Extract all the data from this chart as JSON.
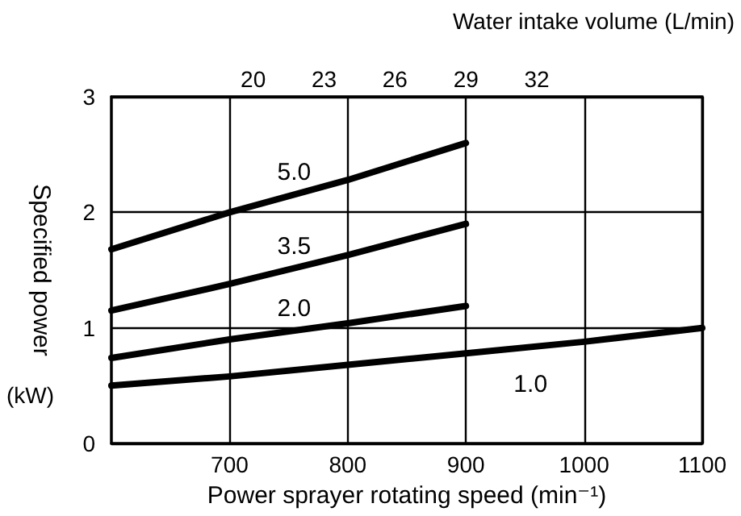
{
  "chart_data": {
    "type": "line",
    "xlabel": "Power sprayer rotating speed (min⁻¹)",
    "ylabel": "Specified power",
    "x2label": "Water intake volume (L/min)",
    "annotations": [
      "(kW)"
    ],
    "xlim": [
      600,
      1100
    ],
    "xticks": [
      700,
      800,
      900,
      1000,
      1100
    ],
    "ylim": [
      0,
      3
    ],
    "yticks": [
      0,
      1,
      2,
      3
    ],
    "x2lim": [
      14,
      39
    ],
    "x2ticks": [
      20,
      23,
      26,
      29,
      32
    ],
    "grid": true,
    "legend": false,
    "marker": "none",
    "line_style": "solid",
    "series": [
      {
        "name": "5.0",
        "color": "#000000",
        "x": [
          600,
          700,
          800,
          900
        ],
        "values": [
          1.68,
          2.0,
          2.28,
          2.6
        ]
      },
      {
        "name": "3.5",
        "color": "#000000",
        "x": [
          600,
          700,
          800,
          900
        ],
        "values": [
          1.15,
          1.38,
          1.63,
          1.9
        ]
      },
      {
        "name": "2.0",
        "color": "#000000",
        "x": [
          600,
          700,
          800,
          900
        ],
        "values": [
          0.74,
          0.9,
          1.04,
          1.19
        ]
      },
      {
        "name": "1.0",
        "color": "#000000",
        "x": [
          600,
          700,
          800,
          900,
          1000,
          1100
        ],
        "values": [
          0.5,
          0.58,
          0.68,
          0.78,
          0.88,
          1.0
        ]
      }
    ]
  }
}
